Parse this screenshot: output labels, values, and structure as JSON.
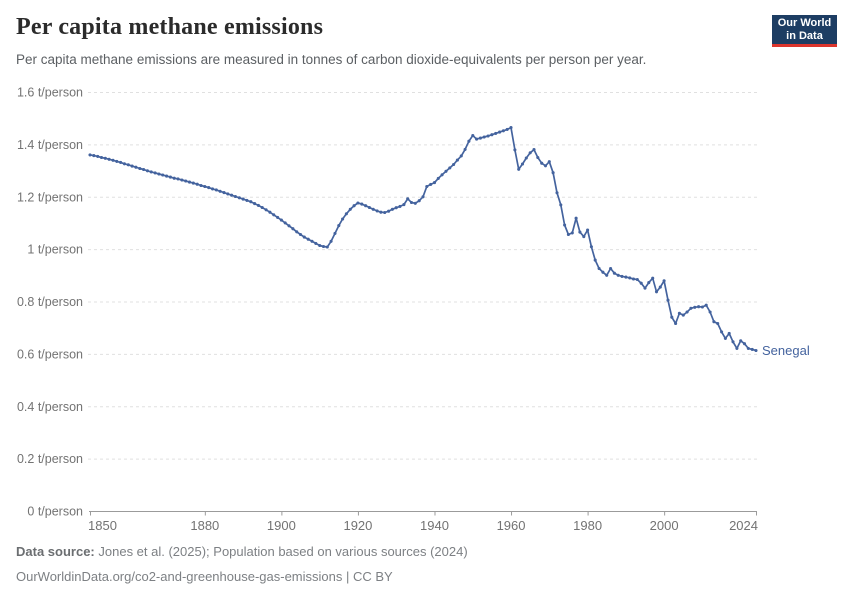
{
  "header": {
    "title": "Per capita methane emissions",
    "subtitle": "Per capita methane emissions are measured in tonnes of carbon dioxide-equivalents per person per year.",
    "logo": {
      "line1": "Our World",
      "line2": "in Data",
      "bg_color": "#1d3d63",
      "accent_color": "#dc352d"
    }
  },
  "footer": {
    "source_label": "Data source:",
    "source_value": "Jones et al. (2025); Population based on various sources (2024)",
    "citation": "OurWorldinData.org/co2-and-greenhouse-gas-emissions | CC BY"
  },
  "chart_data": {
    "type": "line",
    "title": "Per capita methane emissions",
    "entity_label": "Senegal",
    "line_color": "#44639e",
    "grid": "horizontal-dashed",
    "legend_position": "end-of-line-label",
    "xlim": [
      1850,
      2024
    ],
    "ylim": [
      0,
      1.6
    ],
    "xticks": [
      1850,
      1880,
      1900,
      1920,
      1940,
      1960,
      1980,
      2000,
      2024
    ],
    "yticks": [
      0,
      0.2,
      0.4,
      0.6,
      0.8,
      1,
      1.2,
      1.4,
      1.6
    ],
    "ytick_label_suffix": " t/person",
    "series": [
      {
        "name": "Senegal",
        "year_start": 1850,
        "year_end": 2024,
        "values": [
          1.36,
          1.357,
          1.354,
          1.35,
          1.347,
          1.343,
          1.339,
          1.335,
          1.331,
          1.326,
          1.322,
          1.317,
          1.313,
          1.308,
          1.304,
          1.299,
          1.295,
          1.291,
          1.287,
          1.283,
          1.279,
          1.275,
          1.271,
          1.268,
          1.264,
          1.26,
          1.256,
          1.252,
          1.248,
          1.243,
          1.239,
          1.235,
          1.23,
          1.226,
          1.221,
          1.216,
          1.211,
          1.206,
          1.201,
          1.196,
          1.191,
          1.186,
          1.181,
          1.174,
          1.167,
          1.159,
          1.15,
          1.141,
          1.131,
          1.121,
          1.111,
          1.1,
          1.089,
          1.078,
          1.066,
          1.056,
          1.046,
          1.038,
          1.03,
          1.022,
          1.014,
          1.01,
          1.008,
          1.03,
          1.06,
          1.09,
          1.115,
          1.135,
          1.152,
          1.166,
          1.176,
          1.172,
          1.166,
          1.159,
          1.152,
          1.146,
          1.141,
          1.14,
          1.145,
          1.152,
          1.158,
          1.163,
          1.17,
          1.192,
          1.178,
          1.175,
          1.185,
          1.2,
          1.239,
          1.247,
          1.254,
          1.27,
          1.284,
          1.297,
          1.31,
          1.323,
          1.34,
          1.356,
          1.381,
          1.412,
          1.434,
          1.42,
          1.424,
          1.428,
          1.432,
          1.437,
          1.442,
          1.447,
          1.452,
          1.457,
          1.464,
          1.379,
          1.305,
          1.325,
          1.348,
          1.368,
          1.38,
          1.35,
          1.328,
          1.318,
          1.334,
          1.292,
          1.215,
          1.169,
          1.092,
          1.056,
          1.062,
          1.118,
          1.065,
          1.048,
          1.073,
          1.009,
          0.958,
          0.926,
          0.912,
          0.9,
          0.926,
          0.908,
          0.9,
          0.896,
          0.893,
          0.89,
          0.886,
          0.884,
          0.87,
          0.851,
          0.872,
          0.889,
          0.837,
          0.855,
          0.879,
          0.805,
          0.74,
          0.716,
          0.755,
          0.748,
          0.76,
          0.774,
          0.778,
          0.78,
          0.779,
          0.786,
          0.76,
          0.723,
          0.716,
          0.684,
          0.659,
          0.678,
          0.646,
          0.621,
          0.65,
          0.639,
          0.621,
          0.617,
          0.613
        ]
      }
    ]
  }
}
